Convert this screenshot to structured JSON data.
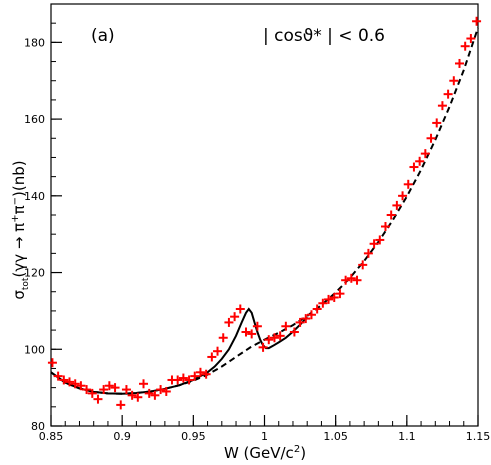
{
  "chart_data": {
    "type": "scatter",
    "panel_label": "(a)",
    "annotation": "| cosϑ* | < 0.6",
    "xlabel_parts": {
      "main": "W (GeV/c",
      "sup": "2",
      "end": ")"
    },
    "ylabel_parts": {
      "sigma": "σ",
      "sigma_sub": "tot",
      "middle": "(γγ → π",
      "plus_sup": "+",
      "pi": "π",
      "minus_sup": "−",
      "end": ")(nb)"
    },
    "xlim": [
      0.85,
      1.15
    ],
    "ylim": [
      80,
      190
    ],
    "x_ticks": [
      {
        "value": 0.85,
        "label": "0.85"
      },
      {
        "value": 0.9,
        "label": "0.9"
      },
      {
        "value": 0.95,
        "label": "0.95"
      },
      {
        "value": 1.0,
        "label": "1"
      },
      {
        "value": 1.05,
        "label": "1.05"
      },
      {
        "value": 1.1,
        "label": "1.1"
      },
      {
        "value": 1.15,
        "label": "1.15"
      }
    ],
    "y_ticks": [
      {
        "value": 80,
        "label": "80"
      },
      {
        "value": 100,
        "label": "100"
      },
      {
        "value": 120,
        "label": "120"
      },
      {
        "value": 140,
        "label": "140"
      },
      {
        "value": 160,
        "label": "160"
      },
      {
        "value": 180,
        "label": "180"
      }
    ],
    "x_minor_step": 0.01,
    "y_minor_step": 5,
    "marker_color": "#ff0000",
    "line_color": "#000000",
    "series": [
      {
        "style": "markers",
        "x": [
          0.851,
          0.855,
          0.859,
          0.863,
          0.867,
          0.871,
          0.875,
          0.879,
          0.883,
          0.887,
          0.891,
          0.895,
          0.899,
          0.903,
          0.907,
          0.911,
          0.915,
          0.919,
          0.923,
          0.927,
          0.931,
          0.935,
          0.939,
          0.943,
          0.947,
          0.951,
          0.955,
          0.959,
          0.963,
          0.967,
          0.971,
          0.975,
          0.979,
          0.983,
          0.987,
          0.991,
          0.995,
          0.999,
          1.003,
          1.007,
          1.011,
          1.015,
          1.021,
          1.025,
          1.029,
          1.033,
          1.037,
          1.041,
          1.045,
          1.049,
          1.053,
          1.057,
          1.061,
          1.065,
          1.069,
          1.073,
          1.077,
          1.081,
          1.085,
          1.089,
          1.093,
          1.097,
          1.101,
          1.105,
          1.109,
          1.113,
          1.117,
          1.121,
          1.125,
          1.129,
          1.133,
          1.137,
          1.141,
          1.145,
          1.149
        ],
        "y": [
          96.5,
          93,
          92,
          91.5,
          91,
          90.5,
          89.5,
          88.5,
          87,
          89.5,
          90.5,
          90,
          85.5,
          89.5,
          88,
          87.5,
          91,
          88.5,
          88,
          89.5,
          89,
          92,
          92,
          92.5,
          92,
          93,
          94,
          93.5,
          98,
          99.5,
          103,
          107,
          108.5,
          110.5,
          104.5,
          104,
          106,
          100.5,
          102.5,
          103,
          103.5,
          106,
          104.5,
          107,
          108,
          109,
          110.5,
          112,
          113,
          113.5,
          114.5,
          118,
          118.5,
          118,
          122,
          125,
          127.5,
          128.5,
          132,
          135,
          137.5,
          140,
          143,
          147.5,
          149,
          151,
          155,
          159,
          163.5,
          166.5,
          170,
          174.5,
          179,
          181,
          185.5
        ]
      },
      {
        "style": "dashed",
        "x": [
          0.85,
          0.86,
          0.87,
          0.88,
          0.89,
          0.9,
          0.91,
          0.92,
          0.93,
          0.94,
          0.95,
          0.96,
          0.97,
          0.98,
          0.99,
          1.0,
          1.01,
          1.02,
          1.03,
          1.04,
          1.05,
          1.06,
          1.07,
          1.08,
          1.09,
          1.1,
          1.11,
          1.12,
          1.13,
          1.14,
          1.15
        ],
        "y": [
          94,
          91.3,
          89.8,
          88.9,
          88.5,
          88.4,
          88.6,
          89,
          89.7,
          90.6,
          91.8,
          93.4,
          95.5,
          98,
          100.5,
          102.5,
          104.3,
          106.3,
          108.7,
          111.5,
          114.8,
          118.6,
          123,
          128,
          133.6,
          139.8,
          146.8,
          154.6,
          163.2,
          172.8,
          183.8
        ]
      },
      {
        "style": "solid",
        "x": [
          0.85,
          0.86,
          0.87,
          0.88,
          0.89,
          0.9,
          0.91,
          0.92,
          0.93,
          0.94,
          0.95,
          0.96,
          0.965,
          0.97,
          0.975,
          0.98,
          0.984,
          0.987,
          0.989,
          0.991,
          0.993,
          0.995,
          0.997,
          0.999,
          1.001,
          1.003,
          1.006,
          1.01,
          1.015,
          1.02,
          1.025,
          1.03
        ],
        "y": [
          94,
          91.3,
          89.8,
          88.9,
          88.5,
          88.4,
          88.6,
          89,
          89.7,
          90.6,
          92,
          94,
          95.5,
          97.5,
          100,
          103.5,
          107,
          109.5,
          110.5,
          109.5,
          107,
          104.5,
          102.5,
          101,
          100.3,
          100.3,
          100.9,
          101.8,
          103,
          104.6,
          106.4,
          108.4
        ]
      }
    ]
  }
}
